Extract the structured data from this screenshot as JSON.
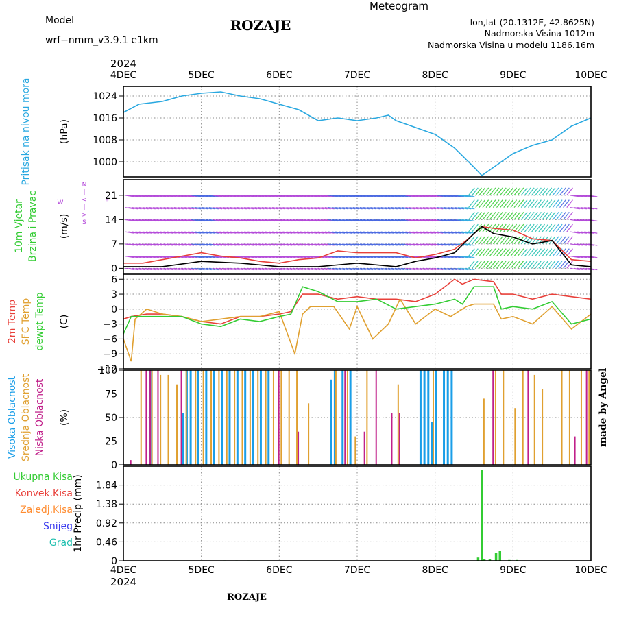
{
  "header": {
    "model_label": "Model",
    "model_name": "wrf−nmm_v3.9.1  e1km",
    "title": "ROZAJE",
    "product": "Meteogram",
    "lonlat": "lon,lat (20.1312E, 42.8625N)",
    "elev": "Nadmorska Visina 1012m",
    "elev_model": "Nadmorska Visina u modelu 1186.16m",
    "footer": "ROZAJE",
    "watermark": "made by Angel"
  },
  "colors": {
    "pressure": "#29a8e0",
    "temp2m": "#e8403a",
    "sfc": "#e0a030",
    "dewpt": "#33cc33",
    "wind_gust": "#000000",
    "wind_line": "#e8403a",
    "cl_high": "#1a9ee8",
    "cl_mid": "#e0a030",
    "cl_low": "#c0208a",
    "precip_total": "#33cc33",
    "conv": "#e8403a",
    "frz": "#ff8c30",
    "snow": "#3a3aee",
    "grad": "#20c0b0",
    "purple": "#b040d8",
    "watermark": "#c8c8c8"
  },
  "time_axis": {
    "top_year": "2024",
    "bottom_year": "2024",
    "ticks": [
      "4DEC",
      "5DEC",
      "6DEC",
      "7DEC",
      "8DEC",
      "9DEC",
      "10DEC"
    ]
  },
  "chart_data": [
    {
      "type": "line",
      "panel": "pressure",
      "ylabel_lines": [
        "Pritisak na nivou mora"
      ],
      "unit": "(hPa)",
      "yticks": [
        1000,
        1008,
        1016,
        1024
      ],
      "ylim": [
        994.5,
        1027.5
      ],
      "x_days": [
        0,
        0.2,
        0.5,
        0.75,
        1.0,
        1.25,
        1.5,
        1.75,
        2.0,
        2.25,
        2.5,
        2.75,
        3.0,
        3.25,
        3.4,
        3.5,
        3.7,
        4.0,
        4.25,
        4.5,
        4.6,
        4.75,
        4.85,
        5.0,
        5.25,
        5.5,
        5.75,
        6.0
      ],
      "values": [
        1018,
        1021,
        1022,
        1024,
        1025,
        1025.5,
        1024,
        1023,
        1021,
        1019,
        1015,
        1016,
        1015,
        1016,
        1017,
        1015,
        1013,
        1010,
        1005,
        998,
        995,
        998,
        1000,
        1003,
        1006,
        1008,
        1013,
        1016
      ],
      "grid": true
    },
    {
      "type": "line",
      "panel": "wind",
      "ylabel_lines": [
        "10m Vjetar",
        "Brzina i Pravac"
      ],
      "unit": "(m/s)",
      "compass": [
        "N",
        "<",
        "|",
        ">",
        "S",
        "W",
        "E"
      ],
      "yticks": [
        0,
        7,
        14,
        21
      ],
      "ylim": [
        -1.5,
        25.5
      ],
      "series": [
        {
          "role": "speed",
          "x_days": [
            0,
            0.25,
            0.5,
            0.75,
            1.0,
            1.25,
            1.5,
            1.75,
            2.0,
            2.25,
            2.5,
            2.75,
            3.0,
            3.25,
            3.5,
            3.75,
            4.0,
            4.25,
            4.4,
            4.5,
            4.6,
            4.75,
            5.0,
            5.25,
            5.5,
            5.75,
            6.0
          ],
          "values": [
            1.5,
            1.5,
            2.5,
            3.5,
            4.5,
            3.5,
            3.0,
            2.0,
            1.5,
            2.5,
            3.0,
            5.0,
            4.5,
            4.5,
            4.5,
            3.0,
            4.0,
            5.5,
            8.0,
            10.0,
            12.0,
            11.5,
            11.0,
            8.5,
            8.0,
            2.5,
            2.0
          ]
        },
        {
          "role": "gust",
          "x_days": [
            0,
            0.5,
            1.0,
            1.5,
            2.0,
            2.5,
            3.0,
            3.5,
            3.75,
            4.0,
            4.25,
            4.5,
            4.6,
            4.75,
            5.0,
            5.25,
            5.5,
            5.75,
            6.0
          ],
          "values": [
            0.5,
            0.5,
            2.0,
            1.5,
            0.5,
            0.5,
            1.5,
            0.5,
            2.0,
            3.0,
            4.5,
            10.0,
            12.0,
            10.0,
            9.0,
            7.0,
            8.0,
            1.0,
            0.5
          ]
        }
      ],
      "grid": true
    },
    {
      "type": "line",
      "panel": "temperature",
      "ylabel_lines": [
        "2m Temp",
        "SFC Temp",
        "dewpt Temp"
      ],
      "unit": "(C)",
      "yticks": [
        -12,
        -9,
        -6,
        -3,
        0,
        3,
        6
      ],
      "ylim": [
        -12,
        7
      ],
      "series": [
        {
          "name": "2m Temp",
          "x_days": [
            0,
            0.1,
            0.3,
            0.5,
            0.75,
            1.0,
            1.25,
            1.5,
            1.75,
            2.0,
            2.15,
            2.3,
            2.5,
            2.75,
            3.0,
            3.25,
            3.5,
            3.75,
            4.0,
            4.25,
            4.35,
            4.5,
            4.75,
            4.85,
            5.0,
            5.25,
            5.5,
            5.75,
            6.0
          ],
          "values": [
            -2.0,
            -1.5,
            -1.0,
            -1.0,
            -1.5,
            -2.5,
            -3.0,
            -1.5,
            -1.5,
            -1.0,
            -0.5,
            3.0,
            3.0,
            2.0,
            2.5,
            2.0,
            2.0,
            1.5,
            3.0,
            6.0,
            5.0,
            6.0,
            5.5,
            3.0,
            3.0,
            2.0,
            3.0,
            2.5,
            2.0
          ]
        },
        {
          "name": "SFC Temp",
          "x_days": [
            0,
            0.1,
            0.15,
            0.3,
            0.5,
            0.75,
            1.0,
            1.25,
            1.5,
            1.75,
            2.0,
            2.2,
            2.3,
            2.4,
            2.5,
            2.7,
            2.9,
            3.0,
            3.2,
            3.4,
            3.55,
            3.75,
            4.0,
            4.2,
            4.4,
            4.5,
            4.75,
            4.85,
            5.0,
            5.25,
            5.5,
            5.75,
            6.0
          ],
          "values": [
            -6.0,
            -10.5,
            -2.0,
            0.0,
            -1.0,
            -1.5,
            -2.5,
            -2.0,
            -1.5,
            -1.5,
            -0.5,
            -9.0,
            -1.0,
            0.5,
            0.5,
            0.5,
            -4.0,
            0.5,
            -6.0,
            -3.0,
            2.0,
            -3.0,
            0.0,
            -1.5,
            0.5,
            1.0,
            1.0,
            -2.0,
            -1.5,
            -3.0,
            0.5,
            -4.0,
            -1.0
          ]
        },
        {
          "name": "dewpt Temp",
          "x_days": [
            0,
            0.1,
            0.3,
            0.5,
            0.75,
            1.0,
            1.25,
            1.5,
            1.75,
            2.0,
            2.15,
            2.3,
            2.5,
            2.75,
            3.0,
            3.25,
            3.5,
            3.75,
            4.0,
            4.25,
            4.35,
            4.5,
            4.75,
            4.85,
            5.0,
            5.25,
            5.5,
            5.75,
            6.0
          ],
          "values": [
            -5.0,
            -1.5,
            -1.5,
            -1.5,
            -1.5,
            -3.0,
            -3.5,
            -2.0,
            -2.5,
            -1.5,
            -1.0,
            4.5,
            3.5,
            1.5,
            1.5,
            2.0,
            0.0,
            0.5,
            1.0,
            2.0,
            1.0,
            4.5,
            4.5,
            0.0,
            0.5,
            0.0,
            1.5,
            -3.0,
            -2.0
          ]
        }
      ],
      "grid": true
    },
    {
      "type": "bar",
      "panel": "clouds",
      "ylabel_lines": [
        "Visoka Oblacnost",
        "Srednja Oblacnost",
        "Niska Oblacnost"
      ],
      "unit": "(%)",
      "yticks": [
        0,
        25,
        50,
        75,
        100
      ],
      "ylim": [
        0,
        100
      ],
      "series": [
        {
          "name": "Visoka Oblacnost",
          "x_days": [
            0.33,
            0.75,
            0.8,
            0.85,
            0.95,
            1.05,
            1.15,
            1.25,
            1.35,
            1.45,
            1.55,
            1.65,
            1.75,
            1.85,
            2.65,
            2.7,
            2.8,
            2.9,
            3.8,
            3.85,
            3.9,
            3.95,
            4.0,
            4.1,
            4.15,
            4.2
          ],
          "values": [
            100,
            55,
            100,
            100,
            100,
            100,
            100,
            100,
            100,
            100,
            100,
            100,
            100,
            100,
            90,
            100,
            100,
            100,
            100,
            100,
            100,
            45,
            100,
            100,
            100,
            100
          ]
        },
        {
          "name": "Srednja Oblacnost",
          "x_days": [
            0.2,
            0.34,
            0.45,
            0.55,
            0.66,
            0.78,
            0.9,
            1.0,
            1.1,
            1.2,
            1.3,
            1.4,
            1.5,
            1.6,
            1.7,
            1.8,
            1.9,
            2.0,
            2.1,
            2.2,
            2.35,
            2.7,
            2.85,
            2.95,
            3.1,
            3.5,
            3.95,
            4.6,
            4.75,
            4.85,
            5.0,
            5.1,
            5.25,
            5.35,
            5.6,
            5.7,
            5.85,
            5.95
          ],
          "values": [
            100,
            100,
            95,
            95,
            85,
            100,
            100,
            100,
            100,
            100,
            100,
            100,
            100,
            100,
            100,
            100,
            100,
            100,
            100,
            100,
            65,
            100,
            100,
            30,
            100,
            85,
            100,
            70,
            100,
            100,
            60,
            100,
            95,
            80,
            100,
            100,
            100,
            100
          ]
        },
        {
          "name": "Niska Oblacnost",
          "x_days": [
            0.05,
            0.25,
            0.3,
            0.4,
            0.7,
            1.95,
            2.2,
            2.8,
            3.05,
            3.2,
            3.4,
            3.5,
            4.7,
            5.15,
            5.75,
            5.9
          ],
          "values": [
            5,
            100,
            100,
            100,
            100,
            100,
            35,
            100,
            35,
            100,
            55,
            55,
            100,
            100,
            30,
            100
          ]
        }
      ],
      "grid": true
    },
    {
      "type": "bar",
      "panel": "precip",
      "legend": [
        "Ukupna Kisa",
        "Konvek.Kisa",
        "Zaledj.Kisa",
        "Snijeg",
        "Grad"
      ],
      "unit": "1hr Precip (mm)",
      "yticks": [
        0,
        0.46,
        0.92,
        1.38,
        1.84
      ],
      "ylim": [
        0,
        2.3
      ],
      "x_days": [
        1.3,
        1.45,
        1.6,
        4.55,
        4.6,
        4.63,
        4.7,
        4.78,
        4.83,
        4.95,
        5.05
      ],
      "values": [
        0.01,
        0.01,
        0.01,
        0.08,
        2.2,
        0.04,
        0.04,
        0.2,
        0.24,
        0.02,
        0.02
      ],
      "grid": true
    }
  ]
}
